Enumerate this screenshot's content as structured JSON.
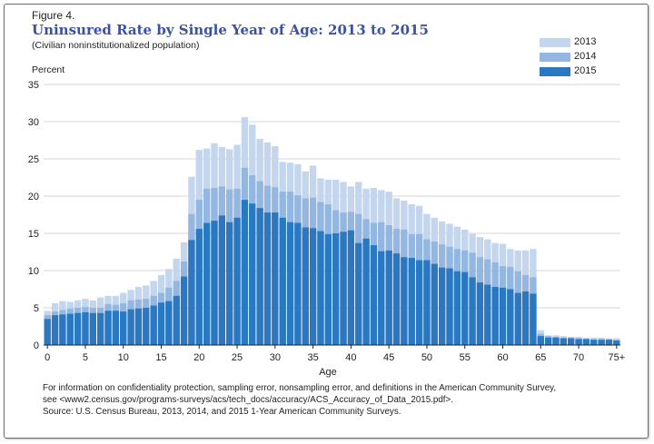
{
  "figure_label": "Figure 4.",
  "title": "Uninsured Rate by Single Year of Age: 2013 to 2015",
  "subtitle": "(Civilian noninstitutionalized population)",
  "y_axis_label": "Percent",
  "x_axis_label": "Age",
  "notes": [
    "For information on confidentiality protection, sampling error, nonsampling error, and definitions in the American Community Survey,",
    "see <www2.census.gov/programs-surveys/acs/tech_docs/accuracy/ACS_Accuracy_of_Data_2015.pdf>.",
    "Source: U.S. Census Bureau, 2013, 2014, and 2015 1-Year American Community Surveys."
  ],
  "colors": {
    "2013": "#c3d6ee",
    "2014": "#93b7e0",
    "2015": "#2a78c2"
  },
  "chart_data": {
    "type": "bar",
    "title": "Uninsured Rate by Single Year of Age: 2013 to 2015",
    "xlabel": "Age",
    "ylabel": "Percent",
    "ylim": [
      0,
      35
    ],
    "yticks": [
      0,
      5,
      10,
      15,
      20,
      25,
      30,
      35
    ],
    "xtick_labels": [
      "0",
      "5",
      "10",
      "15",
      "20",
      "25",
      "30",
      "35",
      "40",
      "45",
      "50",
      "55",
      "60",
      "65",
      "70",
      "75+"
    ],
    "categories": [
      "0",
      "1",
      "2",
      "3",
      "4",
      "5",
      "6",
      "7",
      "8",
      "9",
      "10",
      "11",
      "12",
      "13",
      "14",
      "15",
      "16",
      "17",
      "18",
      "19",
      "20",
      "21",
      "22",
      "23",
      "24",
      "25",
      "26",
      "27",
      "28",
      "29",
      "30",
      "31",
      "32",
      "33",
      "34",
      "35",
      "36",
      "37",
      "38",
      "39",
      "40",
      "41",
      "42",
      "43",
      "44",
      "45",
      "46",
      "47",
      "48",
      "49",
      "50",
      "51",
      "52",
      "53",
      "54",
      "55",
      "56",
      "57",
      "58",
      "59",
      "60",
      "61",
      "62",
      "63",
      "64",
      "65",
      "66",
      "67",
      "68",
      "69",
      "70",
      "71",
      "72",
      "73",
      "74",
      "75+"
    ],
    "overlapping": true,
    "legend_position": "top-right",
    "series": [
      {
        "name": "2013",
        "values": [
          4.6,
          5.6,
          5.9,
          5.8,
          6.0,
          6.2,
          6.0,
          6.4,
          6.6,
          6.6,
          7.0,
          7.4,
          7.8,
          8.0,
          8.6,
          9.4,
          10.2,
          11.6,
          13.8,
          22.6,
          26.2,
          26.4,
          27.1,
          26.6,
          26.3,
          26.9,
          30.6,
          29.6,
          27.7,
          27.2,
          26.7,
          24.6,
          24.5,
          24.3,
          23.3,
          24.1,
          22.4,
          22.2,
          22.2,
          21.9,
          21.3,
          21.9,
          21.0,
          21.1,
          20.8,
          20.6,
          19.7,
          19.4,
          18.9,
          18.7,
          17.6,
          17.1,
          16.6,
          16.3,
          15.9,
          15.5,
          14.9,
          14.5,
          14.2,
          13.7,
          13.6,
          12.9,
          12.7,
          12.7,
          12.9,
          2.0,
          1.3,
          1.3,
          1.2,
          1.1,
          1.1,
          1.0,
          1.0,
          1.0,
          0.9,
          0.9
        ]
      },
      {
        "name": "2014",
        "values": [
          4.0,
          4.5,
          4.7,
          4.9,
          5.0,
          5.1,
          5.0,
          5.0,
          5.5,
          5.4,
          5.6,
          6.0,
          6.1,
          6.2,
          6.6,
          7.0,
          7.7,
          8.6,
          11.2,
          17.6,
          19.5,
          21.0,
          21.1,
          21.3,
          20.9,
          21.0,
          23.8,
          22.8,
          22.0,
          21.4,
          21.2,
          20.6,
          20.6,
          20.1,
          19.7,
          19.8,
          19.2,
          18.9,
          18.1,
          17.8,
          17.9,
          17.6,
          16.9,
          16.4,
          16.5,
          16.1,
          15.6,
          15.5,
          14.9,
          14.9,
          14.2,
          13.9,
          13.5,
          13.2,
          12.9,
          12.7,
          12.4,
          11.8,
          11.5,
          11.1,
          10.6,
          10.5,
          9.9,
          9.4,
          9.1,
          1.5,
          1.2,
          1.1,
          1.0,
          1.0,
          0.9,
          0.8,
          0.8,
          0.8,
          0.8,
          0.7
        ]
      },
      {
        "name": "2015",
        "values": [
          3.5,
          4.0,
          4.1,
          4.2,
          4.3,
          4.4,
          4.3,
          4.3,
          4.6,
          4.6,
          4.5,
          4.8,
          4.9,
          5.0,
          5.3,
          5.7,
          5.9,
          6.6,
          9.2,
          14.1,
          15.6,
          16.4,
          16.7,
          17.4,
          16.5,
          17.1,
          19.5,
          19.0,
          18.4,
          17.8,
          17.8,
          17.1,
          16.5,
          16.4,
          15.8,
          15.7,
          15.3,
          14.9,
          15.0,
          15.2,
          15.4,
          13.7,
          14.3,
          13.4,
          12.6,
          12.7,
          12.3,
          11.8,
          11.7,
          11.4,
          11.4,
          10.9,
          10.4,
          10.3,
          9.9,
          9.8,
          9.1,
          8.4,
          8.1,
          7.8,
          7.7,
          7.5,
          7.0,
          7.2,
          6.9,
          1.2,
          1.0,
          1.0,
          0.9,
          0.9,
          0.8,
          0.8,
          0.7,
          0.7,
          0.7,
          0.6
        ]
      }
    ]
  }
}
